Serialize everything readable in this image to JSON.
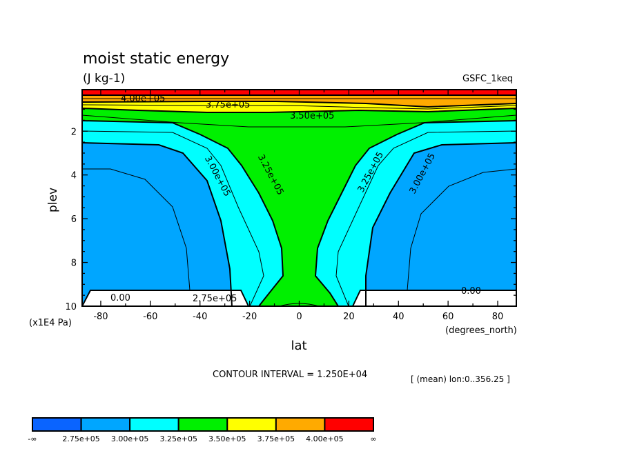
{
  "chart_data": {
    "type": "contour",
    "title": "moist static energy",
    "units": "(J kg-1)",
    "dataset": "GSFC_1keq",
    "xlabel": "lat",
    "x_units": "(degrees_north)",
    "ylabel": "plev",
    "y_units": "(x1E4 Pa)",
    "xlim": [
      -87.5,
      87.5
    ],
    "ylim": [
      10,
      0.1
    ],
    "y_inverted": true,
    "xticks": [
      -80,
      -60,
      -40,
      -20,
      0,
      20,
      40,
      60,
      80
    ],
    "xtick_labels": [
      "-80",
      "-60",
      "-40",
      "-20",
      "0",
      "20",
      "40",
      "60",
      "80"
    ],
    "yticks": [
      2,
      4,
      6,
      8,
      10
    ],
    "ytick_labels": [
      "2",
      "4",
      "6",
      "8",
      "10"
    ],
    "contour_interval": "CONTOUR INTERVAL = 1.250E+04",
    "averaging_note": "[ (mean) lon:0..356.25 ]",
    "contour_labels": [
      "4.00e+05",
      "3.75e+05",
      "3.50e+05",
      "3.25e+05",
      "3.00e+05",
      "3.25e+05",
      "3.00e+05",
      "0.00",
      "2.75e+05",
      "0.00"
    ],
    "colorbar": {
      "labels": [
        "-∞",
        "2.75e+05",
        "3.00e+05",
        "3.25e+05",
        "3.50e+05",
        "3.75e+05",
        "4.00e+05",
        "∞"
      ],
      "levels": [
        275000,
        300000,
        325000,
        350000,
        375000,
        400000
      ],
      "colors": [
        "#0a64ff",
        "#00a6ff",
        "#00ffff",
        "#00f000",
        "#ffff00",
        "#ffaa00",
        "#ff0000"
      ]
    },
    "missing_color": "#ffffff"
  }
}
